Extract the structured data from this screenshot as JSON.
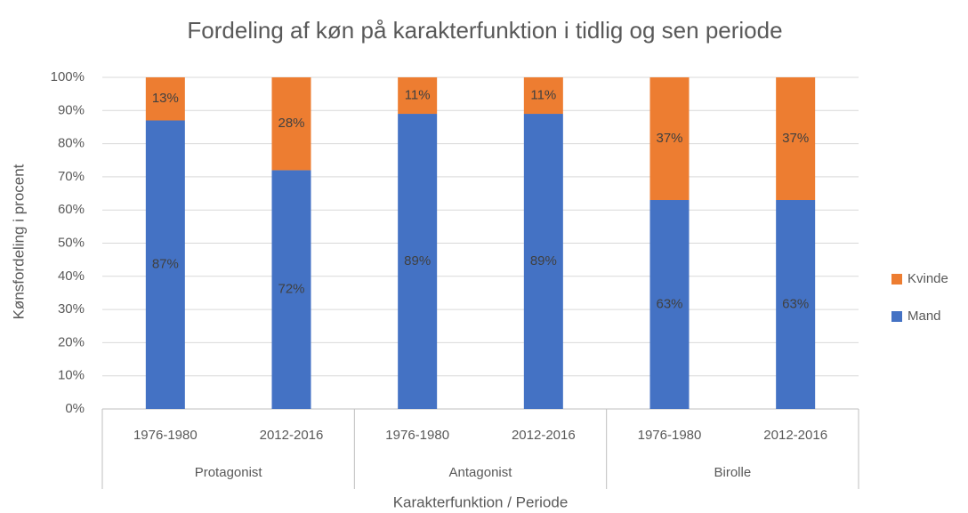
{
  "chart_data": {
    "type": "stacked_bar",
    "title": "Fordeling af køn på karakterfunktion i tidlig og sen periode",
    "y_label": "Kønsfordeling i procent",
    "x_label": "Karakterfunktion / Periode",
    "groups": [
      {
        "name": "Protagonist",
        "categories": [
          "1976-1980",
          "2012-2016"
        ]
      },
      {
        "name": "Antagonist",
        "categories": [
          "1976-1980",
          "2012-2016"
        ]
      },
      {
        "name": "Birolle",
        "categories": [
          "1976-1980",
          "2012-2016"
        ]
      }
    ],
    "series": [
      {
        "name": "Mand",
        "color": "#4472c4",
        "values": [
          87,
          72,
          89,
          89,
          63,
          63
        ],
        "value_labels": [
          "87%",
          "72%",
          "89%",
          "89%",
          "63%",
          "63%"
        ]
      },
      {
        "name": "Kvinde",
        "color": "#ed7d31",
        "values": [
          13,
          28,
          11,
          11,
          37,
          37
        ],
        "value_labels": [
          "13%",
          "28%",
          "11%",
          "11%",
          "37%",
          "37%"
        ]
      }
    ],
    "ylim": [
      0,
      100
    ],
    "yticks": [
      {
        "value": 0,
        "label": "0%"
      },
      {
        "value": 10,
        "label": "10%"
      },
      {
        "value": 20,
        "label": "20%"
      },
      {
        "value": 30,
        "label": "30%"
      },
      {
        "value": 40,
        "label": "40%"
      },
      {
        "value": 50,
        "label": "50%"
      },
      {
        "value": 60,
        "label": "60%"
      },
      {
        "value": 70,
        "label": "70%"
      },
      {
        "value": 80,
        "label": "80%"
      },
      {
        "value": 90,
        "label": "90%"
      },
      {
        "value": 100,
        "label": "100%"
      }
    ],
    "grid": true,
    "legend": "right"
  }
}
